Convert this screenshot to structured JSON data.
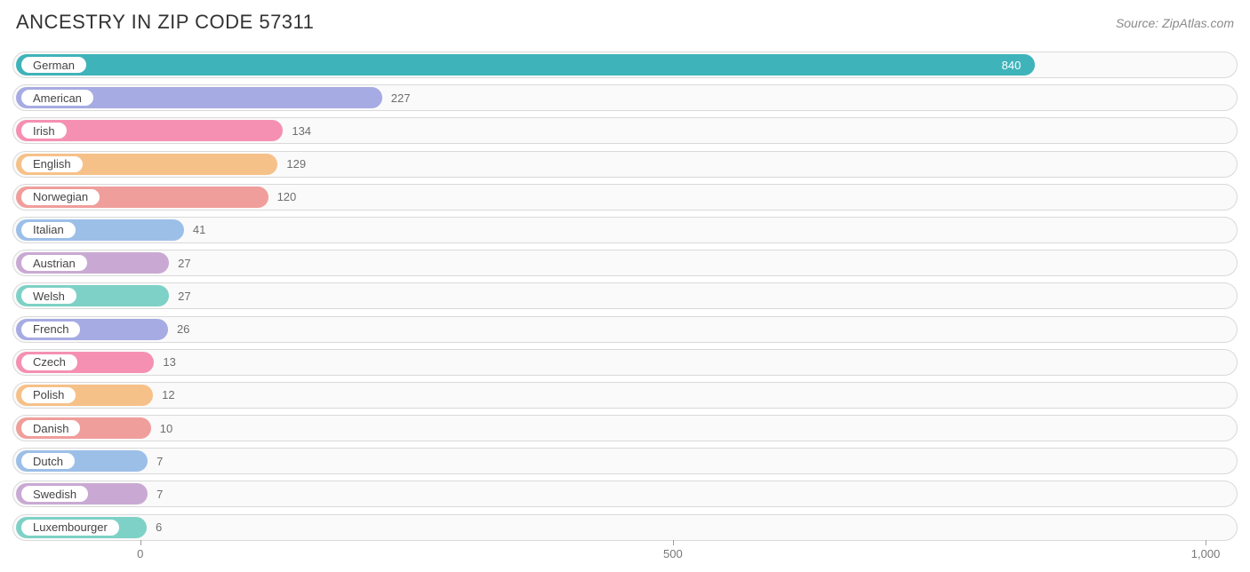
{
  "title": "ANCESTRY IN ZIP CODE 57311",
  "source": "Source: ZipAtlas.com",
  "chart": {
    "type": "bar",
    "orientation": "horizontal",
    "xmin": -120,
    "xmax": 1030,
    "background_color": "#ffffff",
    "track_bg": "#fafafa",
    "track_border": "#d9d9d9",
    "title_color": "#333333",
    "title_fontsize": 22,
    "source_color": "#8a8a8a",
    "label_fontsize": 13,
    "value_fontsize": 13,
    "value_color_outside": "#6e6e6e",
    "value_color_inside": "#ffffff",
    "xticks": [
      {
        "value": 0,
        "label": "0"
      },
      {
        "value": 500,
        "label": "500"
      },
      {
        "value": 1000,
        "label": "1,000"
      }
    ],
    "series": [
      {
        "label": "German",
        "value": 840,
        "color": "#3fb3ba",
        "value_inside": true
      },
      {
        "label": "American",
        "value": 227,
        "color": "#a7abe3",
        "value_inside": false
      },
      {
        "label": "Irish",
        "value": 134,
        "color": "#f590b2",
        "value_inside": false
      },
      {
        "label": "English",
        "value": 129,
        "color": "#f6c189",
        "value_inside": false
      },
      {
        "label": "Norwegian",
        "value": 120,
        "color": "#f09e9b",
        "value_inside": false
      },
      {
        "label": "Italian",
        "value": 41,
        "color": "#9cbfe8",
        "value_inside": false
      },
      {
        "label": "Austrian",
        "value": 27,
        "color": "#c9a9d3",
        "value_inside": false
      },
      {
        "label": "Welsh",
        "value": 27,
        "color": "#7ed1c6",
        "value_inside": false
      },
      {
        "label": "French",
        "value": 26,
        "color": "#a7abe3",
        "value_inside": false
      },
      {
        "label": "Czech",
        "value": 13,
        "color": "#f590b2",
        "value_inside": false
      },
      {
        "label": "Polish",
        "value": 12,
        "color": "#f6c189",
        "value_inside": false
      },
      {
        "label": "Danish",
        "value": 10,
        "color": "#f09e9b",
        "value_inside": false
      },
      {
        "label": "Dutch",
        "value": 7,
        "color": "#9cbfe8",
        "value_inside": false
      },
      {
        "label": "Swedish",
        "value": 7,
        "color": "#c9a9d3",
        "value_inside": false
      },
      {
        "label": "Luxembourger",
        "value": 6,
        "color": "#7ed1c6",
        "value_inside": false
      }
    ]
  }
}
